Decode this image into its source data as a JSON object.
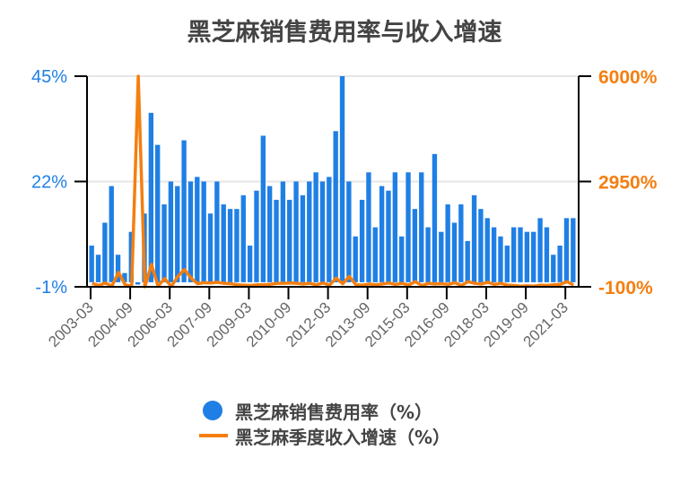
{
  "chart_data": {
    "type": "bar+line",
    "title": "黑芝麻销售费用率与收入增速",
    "x_tick_labels": [
      "2003-03",
      "2004-09",
      "2006-03",
      "2007-09",
      "2009-03",
      "2010-09",
      "2012-03",
      "2013-09",
      "2015-03",
      "2016-09",
      "2018-03",
      "2019-09",
      "2021-03"
    ],
    "left_axis": {
      "ticks": [
        "45%",
        "22%",
        "-1%"
      ],
      "range": [
        -1,
        45
      ],
      "color": "#1f7fe5"
    },
    "right_axis": {
      "ticks": [
        "6000%",
        "2950%",
        "-100%"
      ],
      "range": [
        -100,
        6000
      ],
      "color": "#f47f10"
    },
    "grid": true,
    "legend_position": "bottom",
    "series": [
      {
        "name": "黑芝麻销售费用率（%）",
        "type": "bar",
        "color": "#1f7fe5",
        "values": [
          8,
          6,
          13,
          21,
          6,
          2,
          11,
          -0.5,
          15,
          37,
          30,
          17,
          22,
          21,
          31,
          22,
          23,
          22,
          15,
          22,
          17,
          16,
          16,
          19,
          8,
          20,
          32,
          21,
          18,
          22,
          18,
          22,
          19,
          22,
          24,
          22,
          23,
          33,
          45,
          22,
          10,
          18,
          24,
          12,
          21,
          20,
          24,
          10,
          24,
          16,
          24,
          12,
          28,
          11,
          17,
          13,
          17,
          9,
          19,
          16,
          14,
          12,
          10,
          8,
          12,
          12,
          11,
          11,
          14,
          12,
          6,
          8,
          14,
          14
        ]
      },
      {
        "name": "黑芝麻季度收入增速（%）",
        "type": "line",
        "color": "#f47f10",
        "values": [
          0,
          -60,
          10,
          -80,
          320,
          -40,
          -80,
          6000,
          -100,
          550,
          -80,
          140,
          -90,
          200,
          400,
          150,
          -10,
          20,
          10,
          30,
          0,
          -10,
          -40,
          -50,
          -60,
          -40,
          -40,
          -30,
          0,
          0,
          10,
          0,
          -20,
          0,
          -40,
          10,
          -50,
          150,
          -10,
          200,
          -40,
          -50,
          -20,
          -40,
          -20,
          10,
          -30,
          0,
          -50,
          50,
          -60,
          0,
          -20,
          -10,
          -30,
          20,
          -60,
          50,
          0,
          -20,
          30,
          -30,
          0,
          -50,
          -60,
          -80,
          -70,
          -80,
          -50,
          -60,
          -40,
          -30,
          50,
          -50
        ]
      }
    ]
  },
  "legend": {
    "bar_label": "黑芝麻销售费用率（%）",
    "line_label": "黑芝麻季度收入增速（%）"
  }
}
